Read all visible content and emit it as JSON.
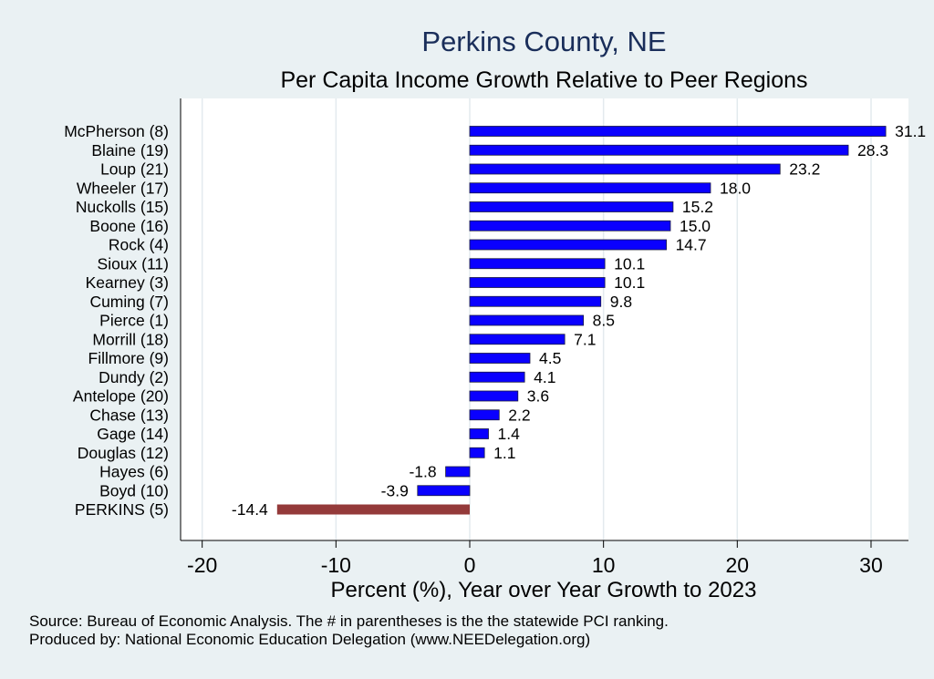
{
  "title": "Perkins County, NE",
  "subtitle": "Per Capita Income Growth Relative to Peer Regions",
  "source_note": "Source: Bureau of Economic Analysis. The # in parentheses is the the statewide PCI ranking.",
  "producer_note": "Produced by: National Economic Education Delegation (www.NEEDelegation.org)",
  "colors": {
    "peer": "#0a00ff",
    "highlight": "#943a3a",
    "plot_bg": "#ffffff",
    "page_bg": "#eaf1f3",
    "grid": "#e3eaee"
  },
  "chart_data": {
    "type": "bar",
    "orientation": "horizontal",
    "xlabel": "Percent (%), Year over Year Growth to 2023",
    "ylabel": "",
    "xlim": [
      -21,
      33
    ],
    "xticks": [
      -20,
      -10,
      0,
      10,
      20,
      30
    ],
    "grid": true,
    "categories": [
      "McPherson  (8)",
      "Blaine (19)",
      "Loup (21)",
      "Wheeler (17)",
      "Nuckolls (15)",
      "Boone (16)",
      "Rock  (4)",
      "Sioux (11)",
      "Kearney  (3)",
      "Cuming  (7)",
      "Pierce  (1)",
      "Morrill (18)",
      "Fillmore  (9)",
      "Dundy  (2)",
      "Antelope (20)",
      "Chase (13)",
      "Gage (14)",
      "Douglas (12)",
      "Hayes  (6)",
      "Boyd (10)",
      "PERKINS  (5)"
    ],
    "values": [
      31.1,
      28.3,
      23.2,
      18.0,
      15.2,
      15.0,
      14.7,
      10.1,
      10.1,
      9.8,
      8.5,
      7.1,
      4.5,
      4.1,
      3.6,
      2.2,
      1.4,
      1.1,
      -1.8,
      -3.9,
      -14.4
    ],
    "labels": [
      "31.1",
      "28.3",
      "23.2",
      "18.0",
      "15.2",
      "15.0",
      "14.7",
      "10.1",
      "10.1",
      "9.8",
      "8.5",
      "7.1",
      "4.5",
      "4.1",
      "3.6",
      "2.2",
      "1.4",
      "1.1",
      "-1.8",
      "-3.9",
      "-14.4"
    ],
    "highlight_index": 20
  }
}
